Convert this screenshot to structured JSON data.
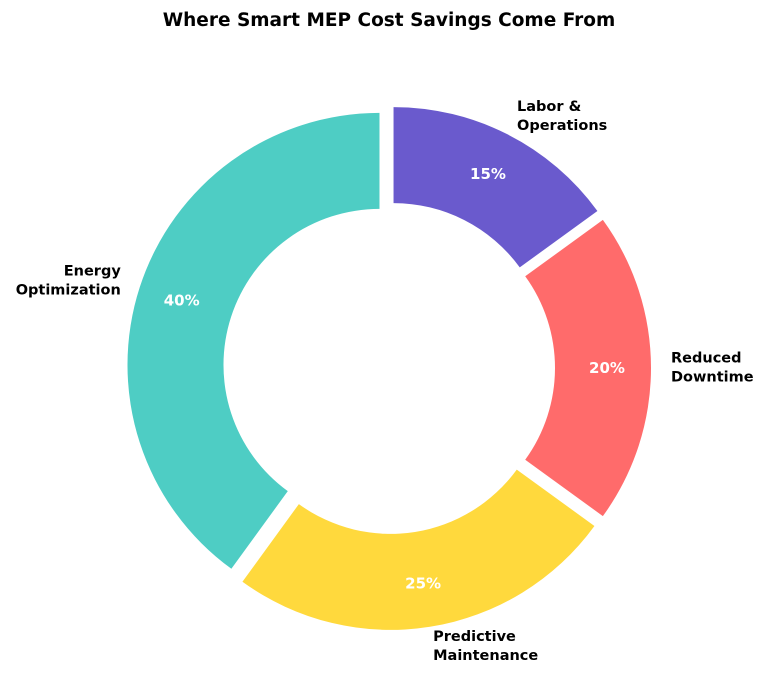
{
  "chart_data": {
    "type": "pie",
    "variant": "donut",
    "title": "Where Smart MEP Cost Savings Come From",
    "slices": [
      {
        "label": "Labor & Operations",
        "label_lines": [
          "Labor &",
          "Operations"
        ],
        "value": 15,
        "value_label": "15%",
        "color": "#6A5ACD"
      },
      {
        "label": "Reduced Downtime",
        "label_lines": [
          "Reduced",
          "Downtime"
        ],
        "value": 20,
        "value_label": "20%",
        "color": "#FF6B6B"
      },
      {
        "label": "Predictive Maintenance",
        "label_lines": [
          "Predictive",
          "Maintenance"
        ],
        "value": 25,
        "value_label": "25%",
        "color": "#FFD93D"
      },
      {
        "label": "Energy Optimization",
        "label_lines": [
          "Energy",
          "Optimization"
        ],
        "value": 40,
        "value_label": "40%",
        "color": "#4ECDC4"
      }
    ],
    "start_angle": "12 o'clock",
    "direction": "clockwise",
    "exploded": true,
    "legend": "none"
  }
}
